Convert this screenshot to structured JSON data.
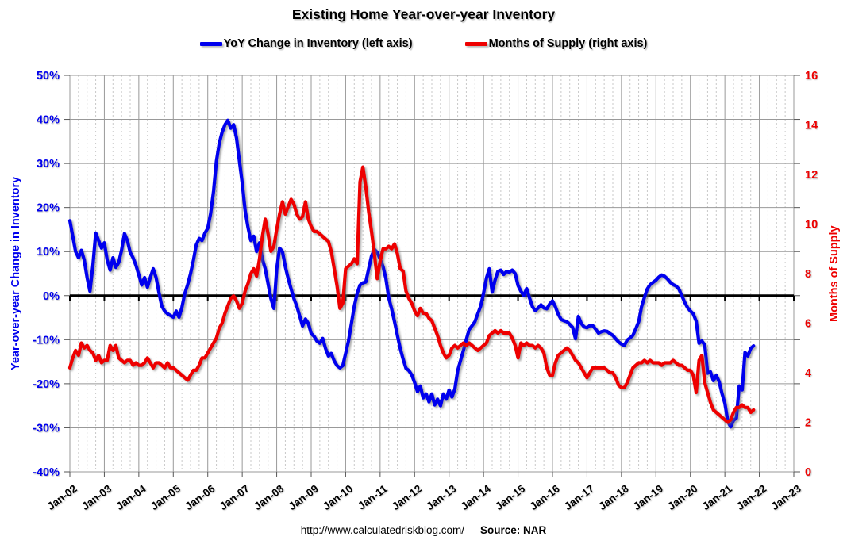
{
  "page": {
    "title": "Existing Home Year-over-year Inventory",
    "footer_url": "http://www.calculatedriskblog.com/",
    "footer_source": "Source: NAR"
  },
  "legend": [
    {
      "label": "YoY Change in Inventory (left axis)",
      "color": "#0000EE"
    },
    {
      "label": "Months of Supply (right axis)",
      "color": "#EE0000"
    }
  ],
  "axes": {
    "left_title": "Year-over-year Change in Inventory",
    "right_title": "Months of Supply"
  },
  "colors": {
    "yoy_line": "#0000EE",
    "supply_line": "#EE0000",
    "gridline": "#999999",
    "minor_gridline": "#c8c8c8",
    "zero_line": "#000000",
    "background": "#ffffff"
  },
  "chart_data": {
    "type": "line",
    "title": "Existing Home Year-over-year Inventory",
    "frequency": "monthly",
    "x_start": "2002-01",
    "x_end": "2021-11",
    "grid": "on",
    "legend_position": "top",
    "x_tick_labels": [
      "Jan-02",
      "Jan-03",
      "Jan-04",
      "Jan-05",
      "Jan-06",
      "Jan-07",
      "Jan-08",
      "Jan-09",
      "Jan-10",
      "Jan-11",
      "Jan-12",
      "Jan-13",
      "Jan-14",
      "Jan-15",
      "Jan-16",
      "Jan-17",
      "Jan-18",
      "Jan-19",
      "Jan-20",
      "Jan-21",
      "Jan-22",
      "Jan-23"
    ],
    "left_axis": {
      "label": "Year-over-year Change in Inventory",
      "min": -40,
      "max": 50,
      "step": 10,
      "tick_labels": [
        "50%",
        "40%",
        "30%",
        "20%",
        "10%",
        "0%",
        "-10%",
        "-20%",
        "-30%",
        "-40%"
      ]
    },
    "right_axis": {
      "label": "Months of Supply",
      "min": 0,
      "max": 16,
      "step": 2,
      "tick_labels": [
        "16",
        "14",
        "12",
        "10",
        "8",
        "6",
        "4",
        "2",
        "0"
      ]
    },
    "zero_line_left_value": 0,
    "series": [
      {
        "name": "YoY Change in Inventory (left axis)",
        "axis": "left",
        "color": "#0000EE",
        "values": [
          17.0,
          13.5,
          10.0,
          8.6,
          10.3,
          8.1,
          4.1,
          1.0,
          6.9,
          14.2,
          12.5,
          10.8,
          12.0,
          8.1,
          5.8,
          8.6,
          6.4,
          7.5,
          10.3,
          14.1,
          12.5,
          9.8,
          8.6,
          6.9,
          4.7,
          2.4,
          4.1,
          1.9,
          4.1,
          6.1,
          4.1,
          0.7,
          -2.4,
          -3.5,
          -4.1,
          -4.5,
          -4.9,
          -3.5,
          -4.9,
          -2.7,
          0.5,
          2.5,
          5.0,
          8.0,
          11.5,
          13.0,
          12.5,
          14.2,
          15.3,
          18.6,
          23.7,
          30.5,
          34.6,
          37.1,
          38.8,
          39.8,
          38.0,
          38.8,
          35.8,
          30.7,
          25.6,
          19.3,
          15.5,
          12.5,
          13.5,
          10.0,
          12.0,
          8.3,
          6.1,
          2.7,
          -0.7,
          -2.9,
          6.1,
          10.8,
          10.0,
          6.6,
          3.9,
          1.5,
          -0.7,
          -2.4,
          -4.6,
          -6.9,
          -5.3,
          -6.3,
          -8.6,
          -9.2,
          -10.3,
          -10.8,
          -9.7,
          -12.0,
          -13.7,
          -13.1,
          -14.8,
          -15.9,
          -16.4,
          -15.9,
          -13.1,
          -10.3,
          -6.3,
          -2.4,
          0.5,
          2.4,
          2.9,
          3.1,
          6.1,
          9.0,
          10.5,
          9.8,
          8.3,
          6.6,
          3.9,
          -0.5,
          -3.0,
          -5.9,
          -9.0,
          -12.0,
          -14.4,
          -16.5,
          -17.0,
          -18.0,
          -19.7,
          -21.8,
          -20.5,
          -23.2,
          -22.3,
          -24.1,
          -22.3,
          -24.8,
          -23.5,
          -25.0,
          -22.3,
          -23.5,
          -21.4,
          -23.0,
          -21.2,
          -17.0,
          -14.7,
          -12.4,
          -10.0,
          -7.7,
          -6.8,
          -5.9,
          -4.1,
          -2.4,
          0.5,
          4.0,
          6.1,
          0.8,
          3.5,
          5.5,
          5.8,
          4.8,
          5.5,
          5.3,
          5.8,
          5.0,
          2.3,
          1.0,
          0.0,
          1.6,
          -0.5,
          -2.5,
          -3.4,
          -2.8,
          -2.1,
          -2.8,
          -3.0,
          -1.9,
          -1.2,
          -2.5,
          -4.2,
          -5.4,
          -5.7,
          -5.9,
          -6.5,
          -7.2,
          -9.8,
          -4.7,
          -6.3,
          -7.1,
          -7.3,
          -6.8,
          -6.8,
          -7.6,
          -8.5,
          -8.2,
          -8.0,
          -8.1,
          -8.6,
          -9.0,
          -9.8,
          -10.5,
          -11.0,
          -11.3,
          -10.1,
          -9.6,
          -9.0,
          -7.5,
          -5.9,
          -2.5,
          -0.4,
          1.5,
          2.5,
          3.0,
          3.5,
          4.2,
          4.7,
          4.4,
          3.8,
          3.0,
          2.5,
          2.2,
          1.5,
          0.0,
          -1.5,
          -2.7,
          -3.5,
          -4.1,
          -5.8,
          -10.8,
          -10.3,
          -11.2,
          -17.6,
          -17.3,
          -19.3,
          -18.1,
          -19.5,
          -22.2,
          -24.4,
          -28.5,
          -29.8,
          -28.3,
          -27.8,
          -20.5,
          -21.4,
          -12.9,
          -13.7,
          -12.0,
          -11.4
        ]
      },
      {
        "name": "Months of Supply (right axis)",
        "axis": "right",
        "color": "#EE0000",
        "values": [
          4.2,
          4.6,
          4.9,
          4.7,
          5.2,
          5.0,
          5.1,
          4.9,
          4.8,
          4.5,
          4.7,
          4.4,
          4.5,
          4.5,
          5.1,
          4.9,
          5.1,
          4.6,
          4.5,
          4.4,
          4.5,
          4.5,
          4.3,
          4.4,
          4.3,
          4.3,
          4.4,
          4.6,
          4.4,
          4.2,
          4.4,
          4.4,
          4.3,
          4.2,
          4.4,
          4.2,
          4.2,
          4.1,
          4.0,
          3.9,
          3.8,
          3.7,
          3.9,
          4.1,
          4.1,
          4.3,
          4.6,
          4.6,
          4.8,
          5.0,
          5.2,
          5.4,
          5.8,
          6.0,
          6.4,
          6.7,
          7.0,
          7.1,
          6.9,
          6.6,
          6.8,
          7.3,
          7.6,
          8.0,
          8.2,
          7.9,
          8.6,
          9.5,
          10.2,
          9.6,
          8.9,
          9.1,
          9.8,
          10.4,
          10.9,
          10.4,
          10.7,
          11.0,
          10.8,
          10.4,
          10.2,
          10.3,
          10.9,
          10.2,
          9.9,
          9.7,
          9.7,
          9.6,
          9.5,
          9.4,
          9.3,
          8.9,
          8.2,
          7.5,
          6.6,
          6.8,
          8.2,
          8.3,
          8.4,
          8.6,
          8.4,
          11.7,
          12.3,
          11.5,
          10.5,
          9.7,
          8.8,
          7.8,
          8.5,
          9.0,
          9.0,
          9.1,
          9.0,
          9.2,
          8.8,
          8.2,
          8.1,
          7.3,
          7.0,
          6.8,
          6.5,
          6.3,
          6.6,
          6.4,
          6.4,
          6.2,
          6.1,
          5.8,
          5.5,
          5.1,
          4.8,
          4.6,
          4.7,
          5.0,
          5.1,
          5.0,
          5.1,
          5.2,
          5.1,
          5.2,
          5.1,
          5.0,
          4.9,
          5.0,
          5.1,
          5.2,
          5.5,
          5.6,
          5.7,
          5.6,
          5.7,
          5.6,
          5.6,
          5.6,
          5.4,
          5.1,
          4.6,
          5.2,
          5.1,
          5.2,
          5.1,
          5.1,
          5.0,
          5.1,
          5.0,
          4.8,
          4.2,
          3.9,
          3.9,
          4.4,
          4.7,
          4.8,
          4.9,
          5.0,
          4.9,
          4.7,
          4.5,
          4.4,
          4.2,
          4.0,
          3.8,
          4.0,
          4.2,
          4.2,
          4.2,
          4.2,
          4.2,
          4.1,
          4.0,
          4.0,
          3.8,
          3.5,
          3.4,
          3.4,
          3.6,
          3.9,
          4.2,
          4.3,
          4.4,
          4.4,
          4.5,
          4.4,
          4.5,
          4.4,
          4.4,
          4.4,
          4.3,
          4.4,
          4.4,
          4.4,
          4.5,
          4.4,
          4.3,
          4.3,
          4.2,
          4.1,
          4.1,
          3.9,
          3.2,
          4.5,
          4.7,
          3.6,
          3.2,
          2.8,
          2.5,
          2.4,
          2.3,
          2.2,
          2.1,
          2.0,
          2.1,
          2.4,
          2.6,
          2.6,
          2.7,
          2.6,
          2.6,
          2.4,
          2.5
        ]
      }
    ]
  }
}
